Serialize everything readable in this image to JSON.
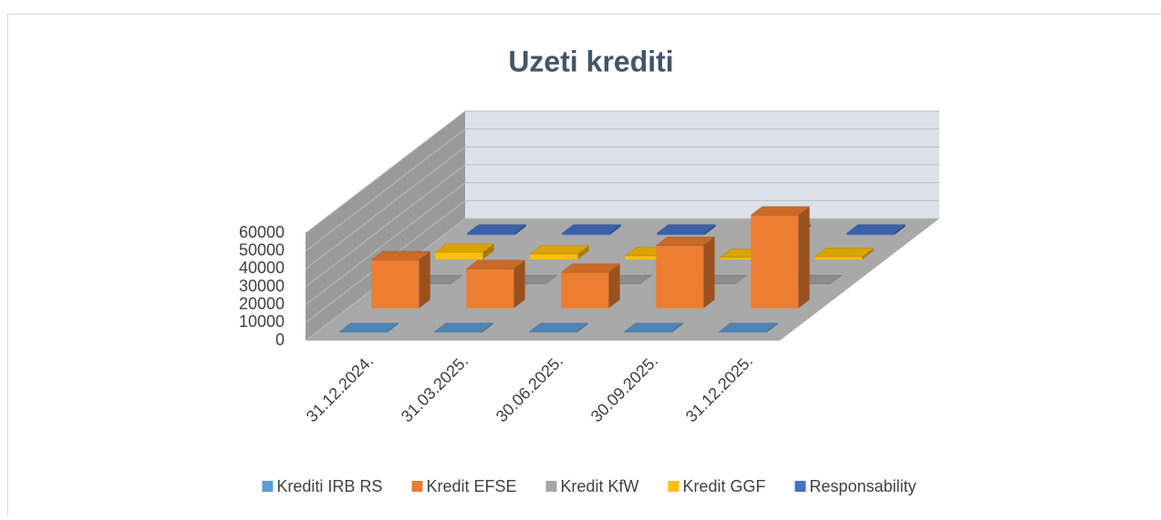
{
  "chart_data": {
    "type": "bar3d",
    "title": "Uzeti krediti",
    "categories": [
      "31.12.2024.",
      "31.03.2025.",
      "30.06.2025.",
      "30.09.2025.",
      "31.12.2025."
    ],
    "series": [
      {
        "name": "Krediti IRB RS",
        "color": "#5b9bd5",
        "values": [
          500,
          500,
          500,
          500,
          500
        ]
      },
      {
        "name": "Kredit EFSE",
        "color": "#ed7d31",
        "values": [
          27000,
          22000,
          20000,
          35000,
          52000
        ]
      },
      {
        "name": "Kredit KfW",
        "color": "#a5a5a5",
        "values": [
          0,
          0,
          0,
          0,
          0
        ]
      },
      {
        "name": "Kredit GGF",
        "color": "#ffc000",
        "values": [
          4000,
          3000,
          2000,
          1000,
          1500
        ]
      },
      {
        "name": "Responsability",
        "color": "#4472c4",
        "values": [
          1000,
          1000,
          1000,
          1000,
          1000
        ]
      }
    ],
    "ylim": [
      0,
      60000
    ],
    "yticks": [
      0,
      10000,
      20000,
      30000,
      40000,
      50000,
      60000
    ],
    "grid": true,
    "legend": "bottom"
  }
}
